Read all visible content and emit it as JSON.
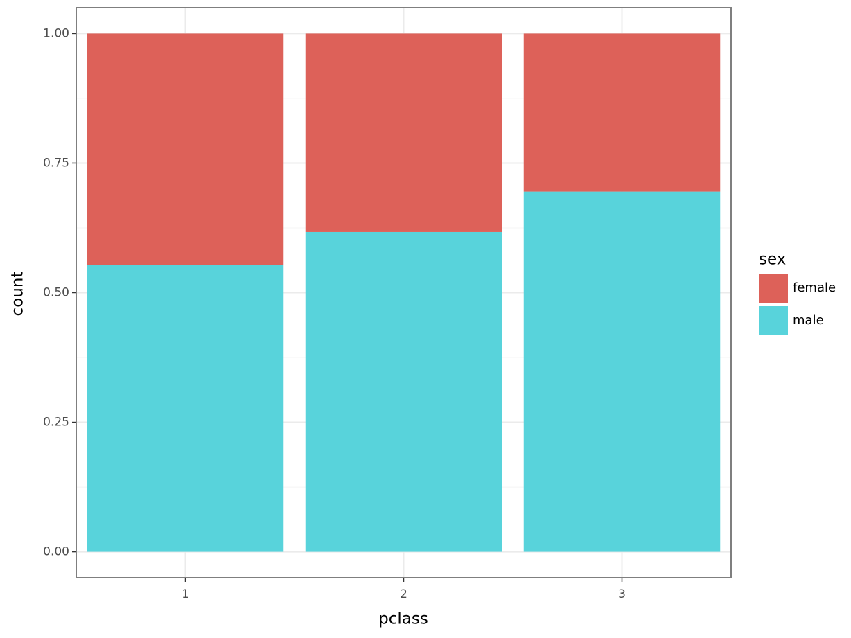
{
  "chart_data": {
    "type": "stacked_bar",
    "categories": [
      "1",
      "2",
      "3"
    ],
    "series": [
      {
        "name": "female",
        "color": "#dd6159",
        "values": [
          0.446,
          0.383,
          0.305
        ]
      },
      {
        "name": "male",
        "color": "#58d3db",
        "values": [
          0.554,
          0.617,
          0.695
        ]
      }
    ],
    "xlabel": "pclass",
    "ylabel": "count",
    "legend_title": "sex",
    "ylim": [
      -0.05,
      1.05
    ],
    "yticks": [
      {
        "value": 0,
        "label": "0.00"
      },
      {
        "value": 0.25,
        "label": "0.25"
      },
      {
        "value": 0.5,
        "label": "0.50"
      },
      {
        "value": 0.75,
        "label": "0.75"
      },
      {
        "value": 1,
        "label": "1.00"
      }
    ],
    "yminorticks": [
      0.125,
      0.375,
      0.625,
      0.875
    ],
    "grid": true,
    "legend": "right"
  }
}
